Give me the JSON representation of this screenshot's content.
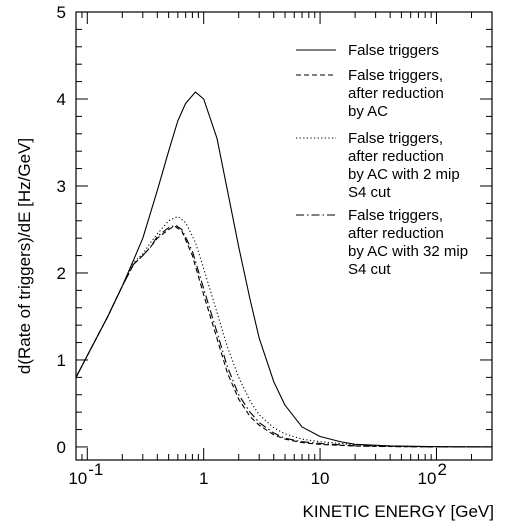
{
  "chart_data": {
    "type": "line",
    "xlabel": "KINETIC ENERGY  [GeV]",
    "ylabel": "d(Rate of triggers)/dE  [Hz/GeV]",
    "xscale": "log",
    "xlim": [
      0.08,
      300
    ],
    "ylim": [
      -0.15,
      5
    ],
    "grid": false,
    "legend_position": "top-right",
    "x_ticks": [
      {
        "value": 0.1,
        "base": "10",
        "exp": "-1"
      },
      {
        "value": 1,
        "base": "1",
        "exp": ""
      },
      {
        "value": 10,
        "base": "10",
        "exp": ""
      },
      {
        "value": 100,
        "base": "10",
        "exp": "2"
      }
    ],
    "y_ticks": [
      {
        "value": 0,
        "label": "0"
      },
      {
        "value": 1,
        "label": "1"
      },
      {
        "value": 2,
        "label": "2"
      },
      {
        "value": 3,
        "label": "3"
      },
      {
        "value": 4,
        "label": "4"
      },
      {
        "value": 5,
        "label": "5"
      }
    ],
    "series": [
      {
        "name": "False triggers",
        "legend_lines": [
          "False triggers"
        ],
        "dash": "solid",
        "points": [
          [
            0.08,
            0.8
          ],
          [
            0.1,
            1.05
          ],
          [
            0.15,
            1.5
          ],
          [
            0.2,
            1.85
          ],
          [
            0.25,
            2.15
          ],
          [
            0.3,
            2.4
          ],
          [
            0.4,
            2.95
          ],
          [
            0.5,
            3.4
          ],
          [
            0.6,
            3.75
          ],
          [
            0.7,
            3.95
          ],
          [
            0.85,
            4.08
          ],
          [
            1.0,
            4.0
          ],
          [
            1.3,
            3.55
          ],
          [
            1.6,
            2.95
          ],
          [
            2.0,
            2.3
          ],
          [
            2.5,
            1.7
          ],
          [
            3.0,
            1.25
          ],
          [
            4.0,
            0.75
          ],
          [
            5.0,
            0.48
          ],
          [
            7.0,
            0.23
          ],
          [
            10,
            0.12
          ],
          [
            15,
            0.06
          ],
          [
            20,
            0.03
          ],
          [
            40,
            0.012
          ],
          [
            100,
            0.003
          ],
          [
            300,
            0.0
          ]
        ]
      },
      {
        "name": "False triggers, after reduction by AC",
        "legend_lines": [
          "False triggers,",
          "after reduction",
          "by AC"
        ],
        "dash": "dashed",
        "points": [
          [
            0.08,
            0.8
          ],
          [
            0.1,
            1.05
          ],
          [
            0.15,
            1.5
          ],
          [
            0.2,
            1.85
          ],
          [
            0.25,
            2.1
          ],
          [
            0.3,
            2.2
          ],
          [
            0.35,
            2.3
          ],
          [
            0.4,
            2.4
          ],
          [
            0.5,
            2.5
          ],
          [
            0.56,
            2.54
          ],
          [
            0.65,
            2.48
          ],
          [
            0.8,
            2.2
          ],
          [
            1.0,
            1.75
          ],
          [
            1.3,
            1.25
          ],
          [
            1.6,
            0.85
          ],
          [
            2.0,
            0.55
          ],
          [
            2.5,
            0.35
          ],
          [
            3.0,
            0.25
          ],
          [
            4.0,
            0.14
          ],
          [
            5.0,
            0.09
          ],
          [
            7.0,
            0.05
          ],
          [
            10,
            0.03
          ],
          [
            20,
            0.01
          ],
          [
            50,
            0.003
          ],
          [
            100,
            0.001
          ],
          [
            300,
            0.0
          ]
        ]
      },
      {
        "name": "False triggers, after reduction by AC with 2 mip S4 cut",
        "legend_lines": [
          "False triggers,",
          "after reduction",
          "by AC with 2 mip",
          "S4 cut"
        ],
        "dash": "dotted",
        "points": [
          [
            0.08,
            0.8
          ],
          [
            0.1,
            1.05
          ],
          [
            0.15,
            1.5
          ],
          [
            0.2,
            1.85
          ],
          [
            0.25,
            2.12
          ],
          [
            0.3,
            2.22
          ],
          [
            0.35,
            2.35
          ],
          [
            0.4,
            2.45
          ],
          [
            0.5,
            2.6
          ],
          [
            0.6,
            2.65
          ],
          [
            0.7,
            2.58
          ],
          [
            0.85,
            2.35
          ],
          [
            1.0,
            2.05
          ],
          [
            1.3,
            1.55
          ],
          [
            1.6,
            1.15
          ],
          [
            2.0,
            0.8
          ],
          [
            2.5,
            0.53
          ],
          [
            3.0,
            0.37
          ],
          [
            4.0,
            0.22
          ],
          [
            5.0,
            0.15
          ],
          [
            7.0,
            0.09
          ],
          [
            10,
            0.06
          ],
          [
            15,
            0.04
          ],
          [
            20,
            0.025
          ],
          [
            50,
            0.008
          ],
          [
            100,
            0.003
          ],
          [
            300,
            0.0
          ]
        ]
      },
      {
        "name": "False triggers, after reduction by AC with 32 mip S4 cut",
        "legend_lines": [
          "False triggers,",
          "after reduction",
          "by AC with 32 mip",
          "S4 cut"
        ],
        "dash": "dashdot",
        "points": [
          [
            0.08,
            0.8
          ],
          [
            0.1,
            1.05
          ],
          [
            0.15,
            1.5
          ],
          [
            0.2,
            1.85
          ],
          [
            0.25,
            2.1
          ],
          [
            0.3,
            2.2
          ],
          [
            0.35,
            2.3
          ],
          [
            0.4,
            2.42
          ],
          [
            0.5,
            2.52
          ],
          [
            0.57,
            2.55
          ],
          [
            0.65,
            2.5
          ],
          [
            0.8,
            2.25
          ],
          [
            1.0,
            1.82
          ],
          [
            1.3,
            1.32
          ],
          [
            1.6,
            0.92
          ],
          [
            2.0,
            0.6
          ],
          [
            2.5,
            0.4
          ],
          [
            3.0,
            0.28
          ],
          [
            4.0,
            0.16
          ],
          [
            5.0,
            0.1
          ],
          [
            7.0,
            0.06
          ],
          [
            10,
            0.04
          ],
          [
            20,
            0.013
          ],
          [
            50,
            0.004
          ],
          [
            100,
            0.001
          ],
          [
            300,
            0.0
          ]
        ]
      }
    ]
  }
}
